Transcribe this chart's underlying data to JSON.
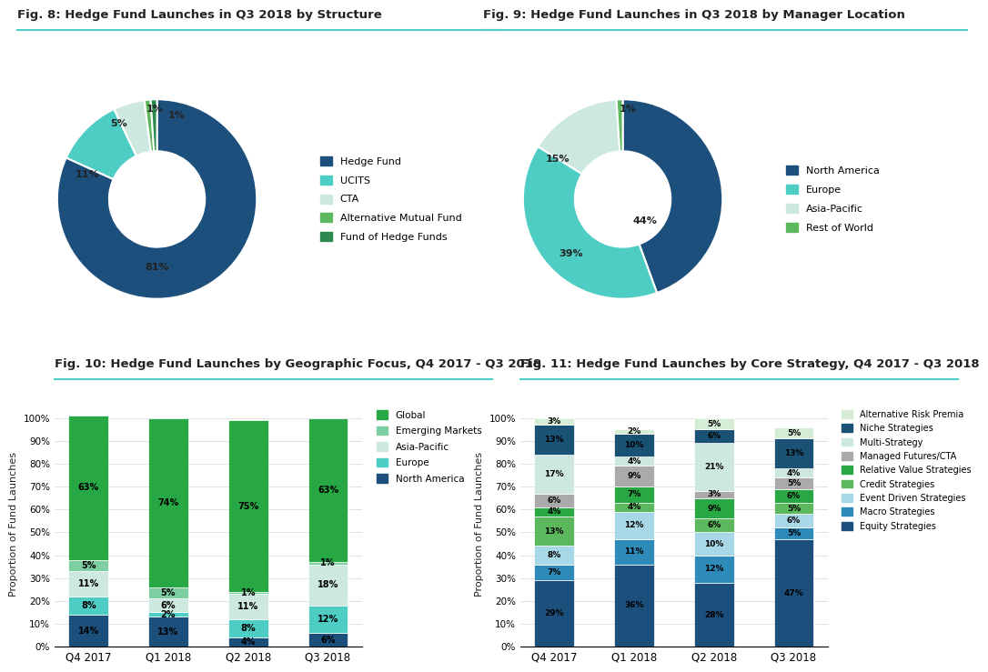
{
  "fig8_title": "Fig. 8: Hedge Fund Launches in Q3 2018 by Structure",
  "fig8_labels": [
    "Hedge Fund",
    "UCITS",
    "CTA",
    "Alternative Mutual Fund",
    "Fund of Hedge Funds"
  ],
  "fig8_values": [
    81,
    11,
    5,
    1,
    1
  ],
  "fig8_colors": [
    "#1d4f7c",
    "#4ecdc4",
    "#cce8e0",
    "#5cb85c",
    "#2d8a4e"
  ],
  "fig8_pct_labels": [
    "81%",
    "11%",
    "5%",
    "1%",
    "1%"
  ],
  "fig9_title": "Fig. 9: Hedge Fund Launches in Q3 2018 by Manager Location",
  "fig9_labels": [
    "North America",
    "Europe",
    "Asia-Pacific",
    "Rest of World"
  ],
  "fig9_values": [
    44,
    39,
    15,
    1
  ],
  "fig9_colors": [
    "#1d4f7c",
    "#4ecdc4",
    "#cce8e0",
    "#5cb85c"
  ],
  "fig9_pct_labels": [
    "44%",
    "39%",
    "15%",
    "1%"
  ],
  "fig10_title": "Fig. 10: Hedge Fund Launches by Geographic Focus, Q4 2017 - Q3 2018",
  "fig10_categories": [
    "Q4 2017",
    "Q1 2018",
    "Q2 2018",
    "Q3 2018"
  ],
  "fig10_series": {
    "North America": [
      14,
      13,
      4,
      6
    ],
    "Europe": [
      8,
      2,
      8,
      12
    ],
    "Asia-Pacific": [
      11,
      6,
      11,
      18
    ],
    "Emerging Markets": [
      5,
      5,
      1,
      1
    ],
    "Global": [
      63,
      74,
      75,
      63
    ]
  },
  "fig10_colors": {
    "North America": "#1d4f7c",
    "Europe": "#4ecdc4",
    "Asia-Pacific": "#cce8e0",
    "Emerging Markets": "#7dcea0",
    "Global": "#27a844"
  },
  "fig10_ylabel": "Proportion of Fund Launches",
  "fig11_title": "Fig. 11: Hedge Fund Launches by Core Strategy, Q4 2017 - Q3 2018",
  "fig11_categories": [
    "Q4 2017",
    "Q1 2018",
    "Q2 2018",
    "Q3 2018"
  ],
  "fig11_series": {
    "Equity Strategies": [
      29,
      36,
      28,
      47
    ],
    "Macro Strategies": [
      7,
      11,
      12,
      5
    ],
    "Event Driven Strategies": [
      8,
      12,
      10,
      6
    ],
    "Credit Strategies": [
      13,
      4,
      6,
      5
    ],
    "Relative Value Strategies": [
      4,
      7,
      9,
      6
    ],
    "Managed Futures/CTA": [
      6,
      9,
      3,
      5
    ],
    "Multi-Strategy": [
      17,
      4,
      21,
      4
    ],
    "Niche Strategies": [
      13,
      10,
      6,
      13
    ],
    "Alternative Risk Premia": [
      3,
      2,
      5,
      5
    ]
  },
  "fig11_colors": {
    "Equity Strategies": "#1d4f7c",
    "Macro Strategies": "#2e8ab8",
    "Event Driven Strategies": "#a8d8e8",
    "Credit Strategies": "#5cb85c",
    "Relative Value Strategies": "#27a844",
    "Managed Futures/CTA": "#aaaaaa",
    "Multi-Strategy": "#cce8e0",
    "Niche Strategies": "#1a5276",
    "Alternative Risk Premia": "#d5ecd5"
  },
  "fig11_ylabel": "Proportion of Fund Launches",
  "title_color": "#222222",
  "text_color": "#222222",
  "divider_color": "#4ecdc4"
}
